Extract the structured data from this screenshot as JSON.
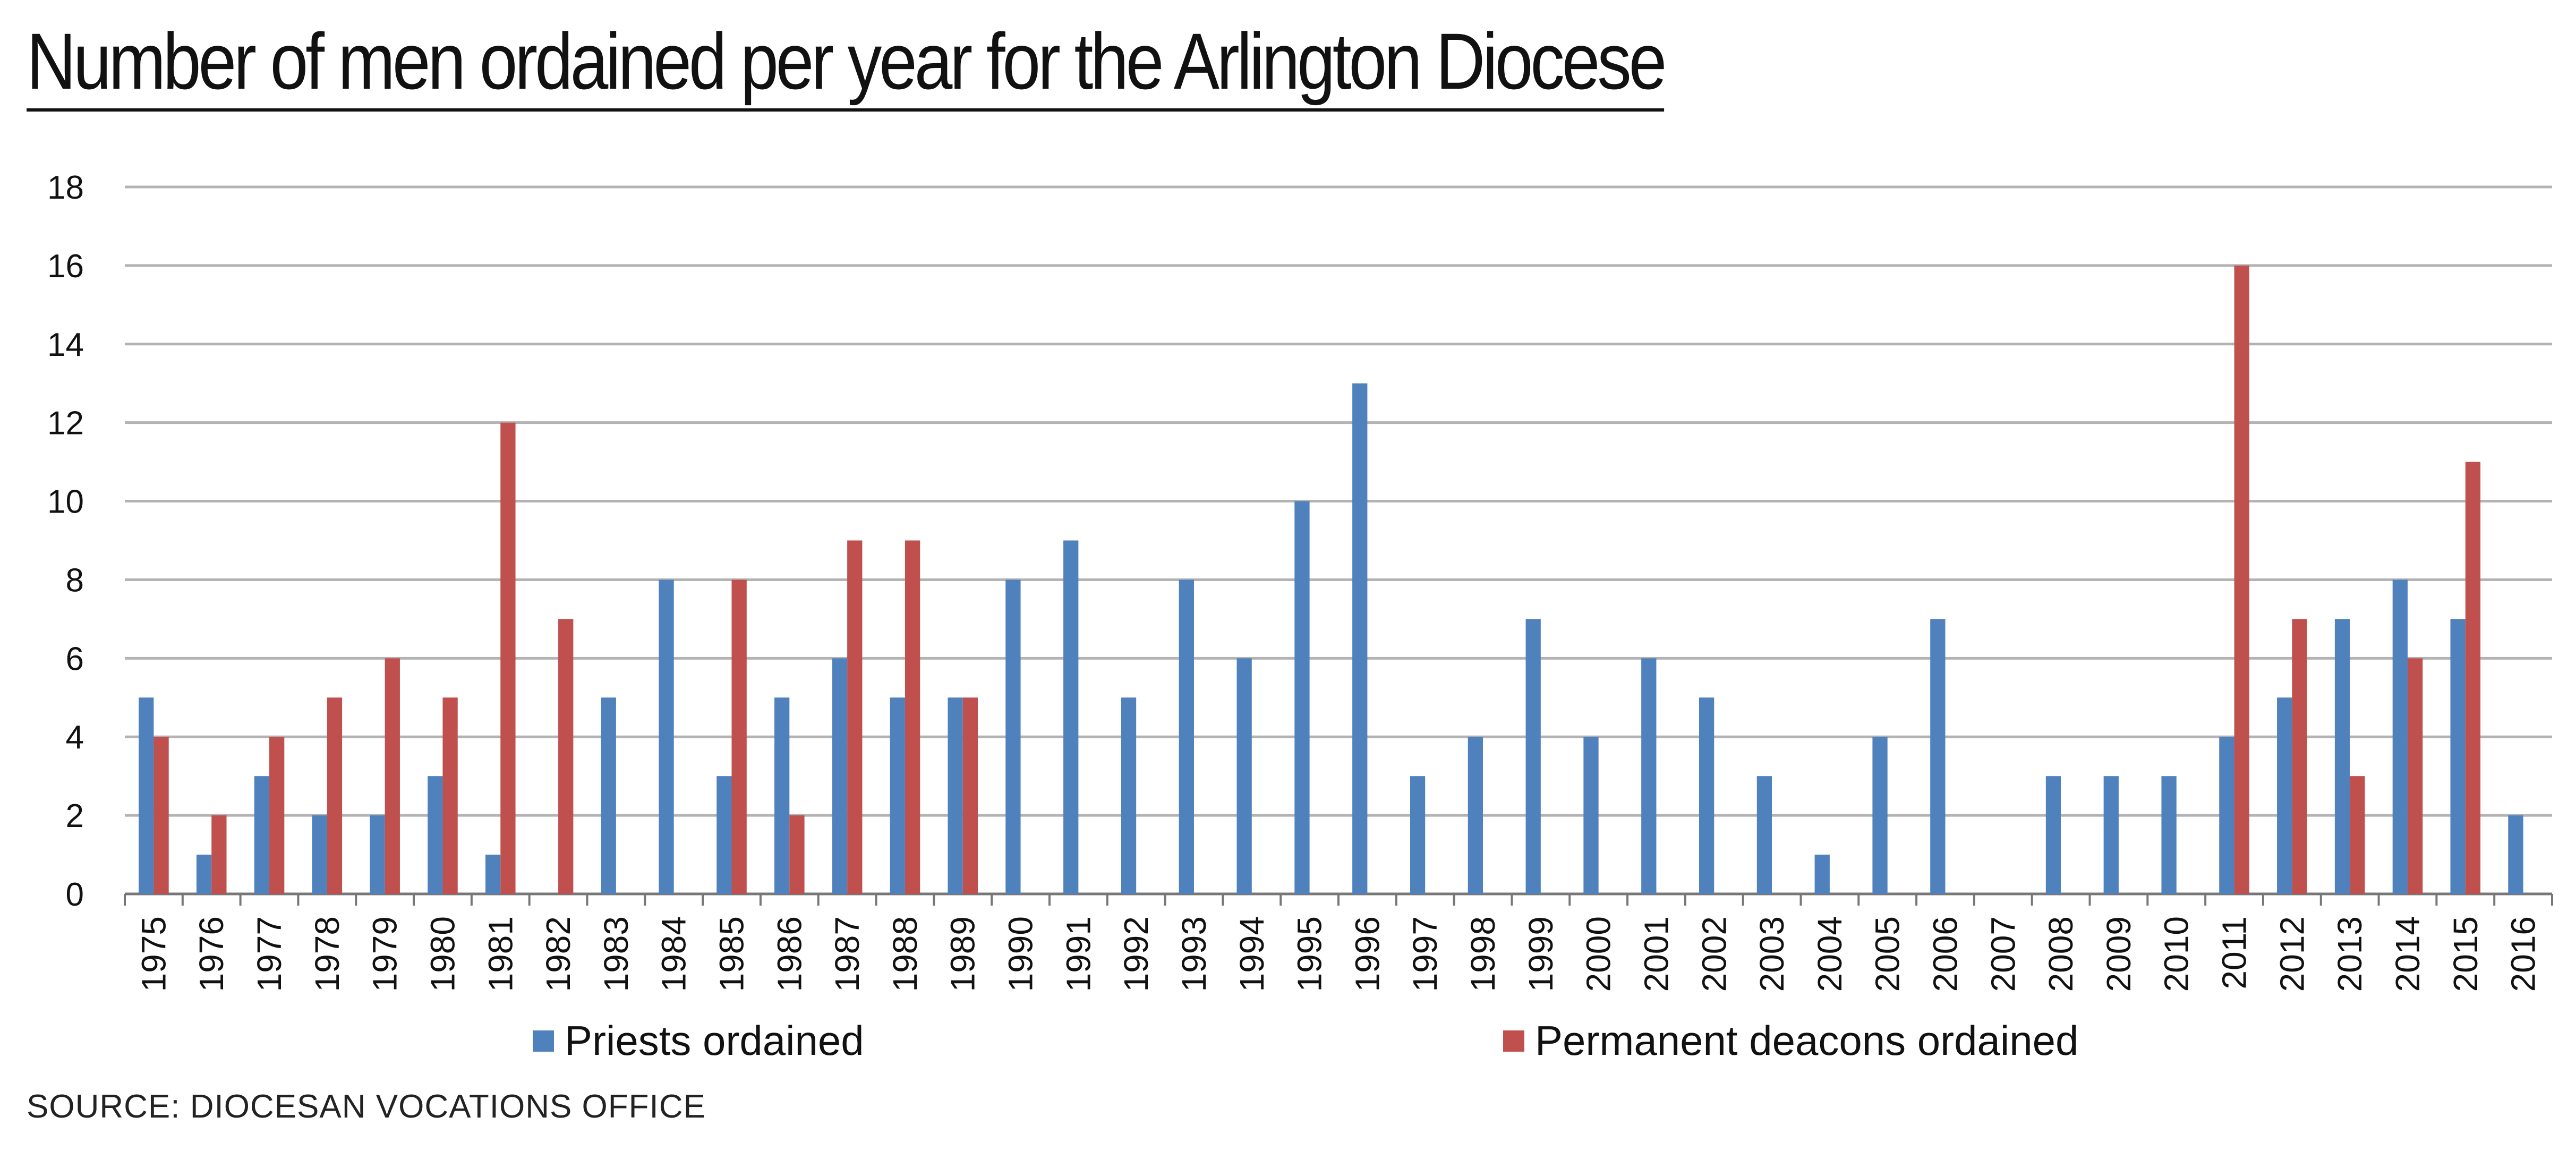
{
  "title": "Number of men ordained per year for the Arlington Diocese",
  "source": "SOURCE: DIOCESAN VOCATIONS OFFICE",
  "colors": {
    "priests": "#4F81BD",
    "deacons": "#C0504D",
    "grid": "#B3B3B3",
    "axis": "#777777",
    "text": "#111111"
  },
  "chart_data": {
    "type": "bar",
    "title": "Number of men ordained per year for the Arlington Diocese",
    "xlabel": "",
    "ylabel": "",
    "ylim": [
      0,
      18
    ],
    "yticks": [
      0,
      2,
      4,
      6,
      8,
      10,
      12,
      14,
      16,
      18
    ],
    "grid": true,
    "legend_position": "bottom",
    "categories": [
      "1975",
      "1976",
      "1977",
      "1978",
      "1979",
      "1980",
      "1981",
      "1982",
      "1983",
      "1984",
      "1985",
      "1986",
      "1987",
      "1988",
      "1989",
      "1990",
      "1991",
      "1992",
      "1993",
      "1994",
      "1995",
      "1996",
      "1997",
      "1998",
      "1999",
      "2000",
      "2001",
      "2002",
      "2003",
      "2004",
      "2005",
      "2006",
      "2007",
      "2008",
      "2009",
      "2010",
      "2011",
      "2012",
      "2013",
      "2014",
      "2015",
      "2016"
    ],
    "series": [
      {
        "name": "Priests ordained",
        "color": "#4F81BD",
        "values": [
          5,
          1,
          3,
          2,
          2,
          3,
          1,
          0,
          5,
          8,
          3,
          5,
          6,
          5,
          5,
          8,
          9,
          5,
          8,
          6,
          10,
          13,
          3,
          4,
          7,
          4,
          6,
          5,
          3,
          1,
          4,
          7,
          0,
          3,
          3,
          3,
          4,
          5,
          7,
          8,
          7,
          2
        ]
      },
      {
        "name": "Permanent deacons ordained",
        "color": "#C0504D",
        "values": [
          4,
          2,
          4,
          5,
          6,
          5,
          12,
          7,
          0,
          0,
          8,
          2,
          9,
          9,
          5,
          0,
          0,
          0,
          0,
          0,
          0,
          0,
          0,
          0,
          0,
          0,
          0,
          0,
          0,
          0,
          0,
          0,
          0,
          0,
          0,
          0,
          16,
          7,
          3,
          6,
          11,
          0
        ]
      }
    ]
  }
}
